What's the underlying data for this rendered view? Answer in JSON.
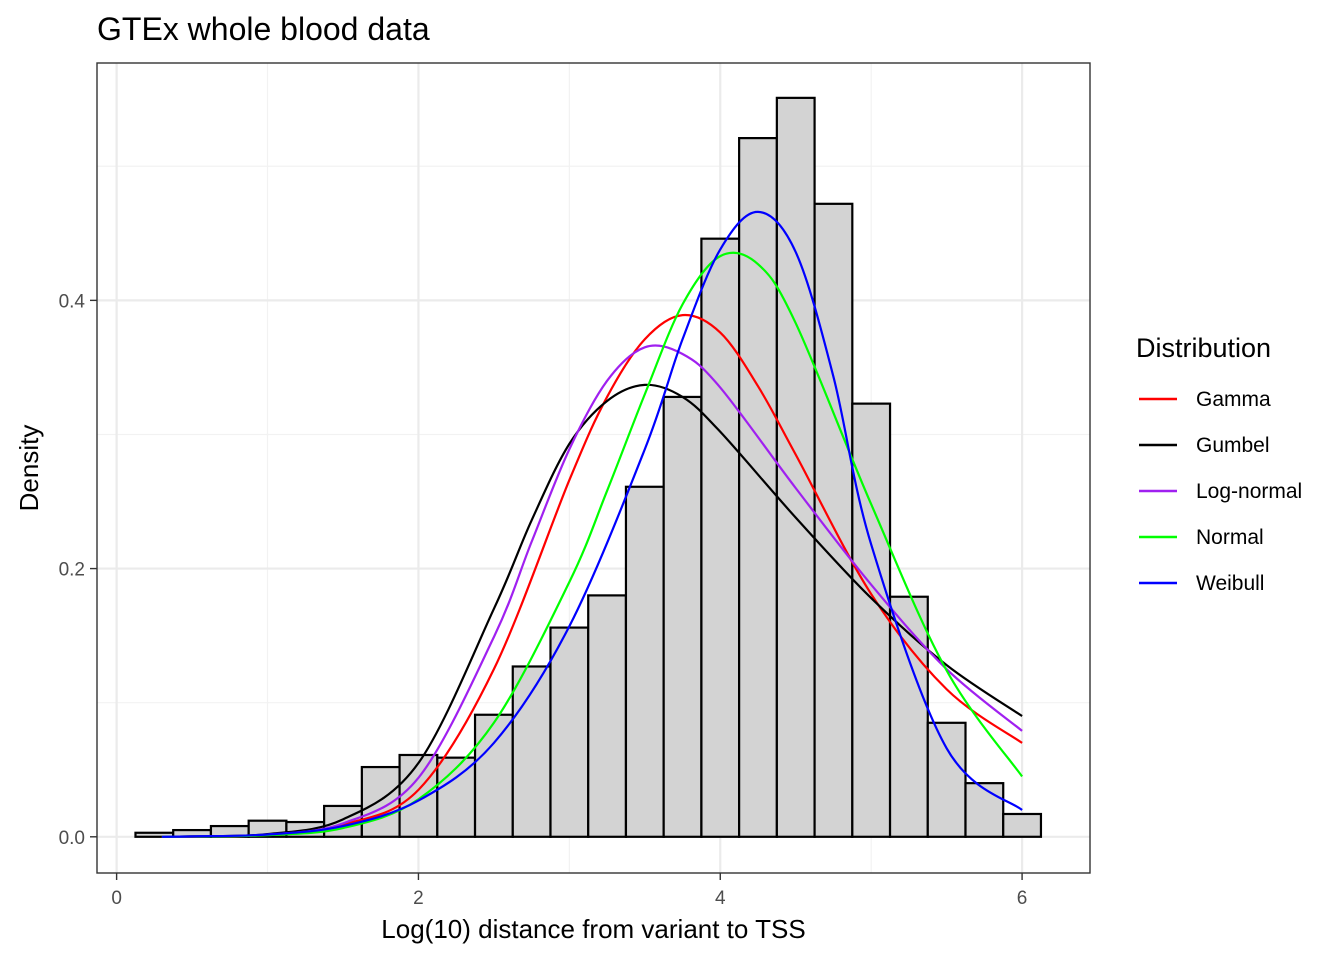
{
  "chart_data": {
    "type": "bar",
    "title": "GTEx whole blood data",
    "xlabel": "Log(10) distance from variant to TSS",
    "ylabel": "Density",
    "xlim": [
      -0.13,
      6.45
    ],
    "ylim": [
      -0.027,
      0.577
    ],
    "x_ticks": [
      0,
      2,
      4,
      6
    ],
    "x_tick_labels": [
      "0",
      "2",
      "4",
      "6"
    ],
    "y_ticks": [
      0.0,
      0.2,
      0.4
    ],
    "y_tick_labels": [
      "0.0",
      "0.2",
      "0.4"
    ],
    "grid": true,
    "histogram": {
      "bin_edges": [
        0.125,
        0.375,
        0.625,
        0.875,
        1.125,
        1.375,
        1.625,
        1.875,
        2.125,
        2.375,
        2.625,
        2.875,
        3.125,
        3.375,
        3.625,
        3.875,
        4.125,
        4.375,
        4.625,
        4.875,
        5.125,
        5.375,
        5.625,
        5.875,
        6.125
      ],
      "density": [
        0.003,
        0.005,
        0.008,
        0.012,
        0.011,
        0.023,
        0.052,
        0.061,
        0.059,
        0.091,
        0.127,
        0.156,
        0.18,
        0.261,
        0.328,
        0.446,
        0.521,
        0.551,
        0.472,
        0.323,
        0.179,
        0.085,
        0.04,
        0.017
      ],
      "fill": "#d3d3d3",
      "stroke": "#000000"
    },
    "legend": {
      "title": "Distribution",
      "position": "right"
    },
    "x_range_curves": [
      0.3,
      6.0
    ],
    "series": [
      {
        "name": "Gamma",
        "color": "#ff0000",
        "x": [
          0.3,
          0.5,
          1.0,
          1.5,
          2.0,
          2.5,
          3.0,
          3.25,
          3.5,
          3.75,
          4.0,
          4.25,
          4.5,
          5.0,
          5.5,
          6.0
        ],
        "y": [
          0.0,
          0.0002,
          0.0015,
          0.009,
          0.035,
          0.125,
          0.266,
          0.328,
          0.371,
          0.389,
          0.376,
          0.336,
          0.285,
          0.181,
          0.11,
          0.07
        ]
      },
      {
        "name": "Gumbel",
        "color": "#000000",
        "x": [
          0.3,
          0.5,
          1.0,
          1.5,
          2.0,
          2.5,
          2.75,
          3.0,
          3.25,
          3.5,
          3.75,
          4.0,
          4.5,
          5.0,
          5.5,
          6.0
        ],
        "y": [
          0.0,
          0.0003,
          0.002,
          0.013,
          0.055,
          0.17,
          0.236,
          0.293,
          0.325,
          0.337,
          0.328,
          0.302,
          0.238,
          0.178,
          0.128,
          0.09
        ]
      },
      {
        "name": "Log-normal",
        "color": "#a020f0",
        "x": [
          0.3,
          0.5,
          1.0,
          1.5,
          2.0,
          2.5,
          2.75,
          3.0,
          3.25,
          3.5,
          3.75,
          4.0,
          4.5,
          5.0,
          5.5,
          6.0
        ],
        "y": [
          0.0,
          0.0002,
          0.0016,
          0.01,
          0.044,
          0.149,
          0.22,
          0.289,
          0.34,
          0.365,
          0.36,
          0.335,
          0.26,
          0.188,
          0.125,
          0.079
        ]
      },
      {
        "name": "Normal",
        "color": "#00ff00",
        "x": [
          0.3,
          0.5,
          1.0,
          1.5,
          2.0,
          2.5,
          3.0,
          3.25,
          3.5,
          3.75,
          4.0,
          4.25,
          4.5,
          5.0,
          5.5,
          6.0
        ],
        "y": [
          0.0,
          0.0002,
          0.0012,
          0.0065,
          0.028,
          0.085,
          0.19,
          0.258,
          0.33,
          0.397,
          0.433,
          0.427,
          0.383,
          0.248,
          0.124,
          0.045
        ]
      },
      {
        "name": "Weibull",
        "color": "#0000ff",
        "x": [
          0.3,
          0.5,
          1.0,
          1.5,
          2.0,
          2.5,
          3.0,
          3.5,
          3.75,
          4.0,
          4.25,
          4.5,
          4.75,
          5.0,
          5.5,
          6.0
        ],
        "y": [
          0.0,
          0.0003,
          0.0017,
          0.008,
          0.027,
          0.07,
          0.157,
          0.289,
          0.371,
          0.438,
          0.466,
          0.436,
          0.343,
          0.218,
          0.066,
          0.02
        ]
      }
    ]
  }
}
